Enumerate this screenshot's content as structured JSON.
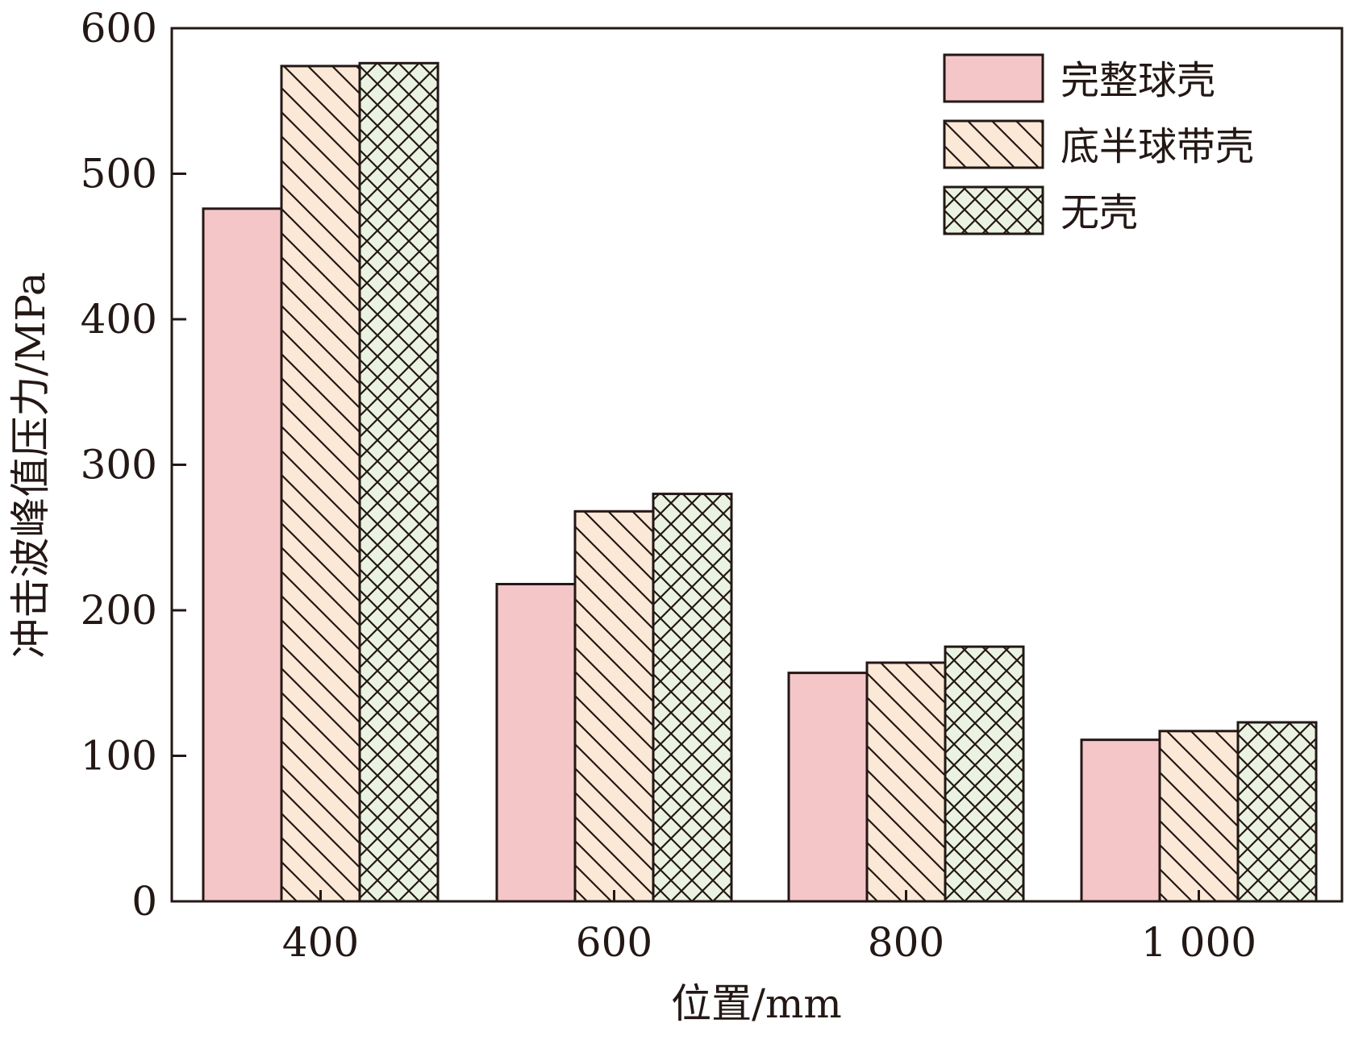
{
  "chart_data": {
    "type": "bar",
    "title": "",
    "xlabel": "位置/mm",
    "ylabel": "冲击波峰值压力/MPa",
    "categories": [
      "400",
      "600",
      "800",
      "1 000"
    ],
    "ylim": [
      0,
      600
    ],
    "yticks": [
      "0",
      "100",
      "200",
      "300",
      "400",
      "500",
      "600"
    ],
    "grid": false,
    "legend_position": "top-right",
    "series": [
      {
        "name": "完整球壳",
        "values": [
          476,
          218,
          157,
          111
        ],
        "color": "#f5c6c8",
        "pattern": "solid"
      },
      {
        "name": "底半球带壳",
        "values": [
          574,
          268,
          164,
          117
        ],
        "color": "#fce8d6",
        "pattern": "diagonal"
      },
      {
        "name": "无壳",
        "values": [
          576,
          280,
          175,
          123
        ],
        "color": "#eaf3e1",
        "pattern": "crosshatch"
      }
    ]
  }
}
